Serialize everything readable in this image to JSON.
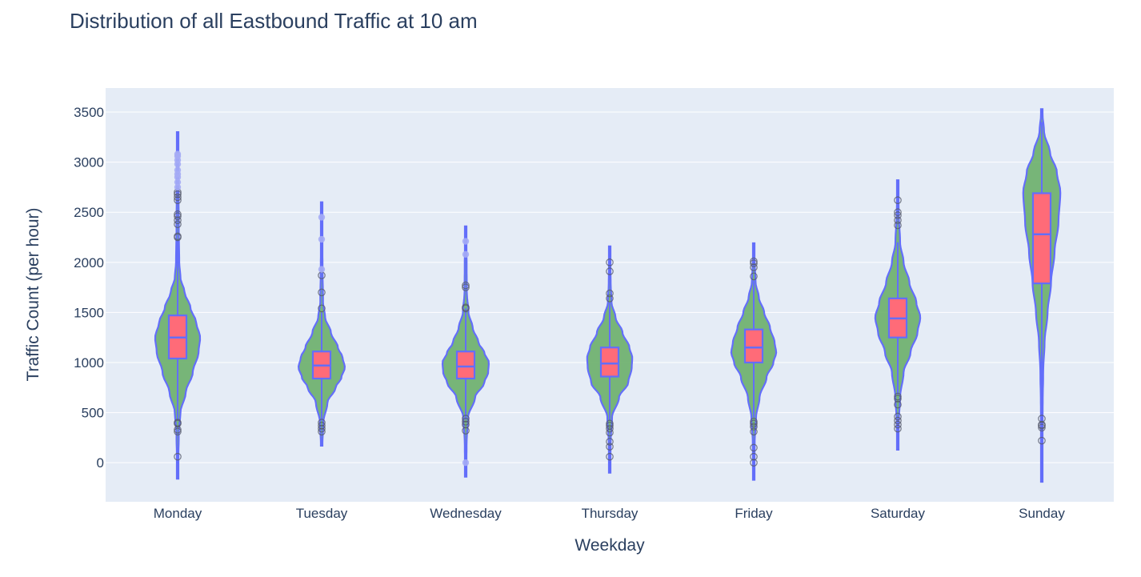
{
  "chart_data": {
    "type": "violin",
    "title": "Distribution of all Eastbound Traffic at 10 am",
    "xlabel": "Weekday",
    "ylabel": "Traffic Count (per hour)",
    "ylim": [
      -390,
      3740
    ],
    "yticks": [
      0,
      500,
      1000,
      1500,
      2000,
      2500,
      3000,
      3500
    ],
    "grid": true,
    "legend": "none",
    "colors": {
      "plot_bg": "#e5ecf6",
      "violin_fill": "#6aaf6a",
      "violin_line": "#636efa",
      "box_fill": "#ff6b78",
      "grid": "#ffffff",
      "text": "#2a3f5f"
    },
    "categories": [
      "Monday",
      "Tuesday",
      "Wednesday",
      "Thursday",
      "Friday",
      "Saturday",
      "Sunday"
    ],
    "series": [
      {
        "category": "Monday",
        "min_extent": -160,
        "max_extent": 3300,
        "q1": 1040,
        "median": 1250,
        "q3": 1470,
        "whisker_low": 420,
        "whisker_high": 2220,
        "density": [
          [
            -160,
            0.02
          ],
          [
            0,
            0.03
          ],
          [
            300,
            0.05
          ],
          [
            500,
            0.12
          ],
          [
            700,
            0.35
          ],
          [
            900,
            0.65
          ],
          [
            1100,
            0.9
          ],
          [
            1250,
            0.97
          ],
          [
            1400,
            0.8
          ],
          [
            1550,
            0.55
          ],
          [
            1700,
            0.3
          ],
          [
            1850,
            0.12
          ],
          [
            2000,
            0.07
          ],
          [
            2300,
            0.05
          ],
          [
            2700,
            0.04
          ],
          [
            3000,
            0.03
          ],
          [
            3300,
            0.01
          ]
        ],
        "outliers": [
          60,
          310,
          330,
          390,
          400,
          2250,
          2260,
          2380,
          2420,
          2460,
          2480,
          2620,
          2650,
          2680,
          2700
        ],
        "suspected": [
          2750,
          2800,
          2850,
          2880,
          2920,
          2980,
          3020,
          3060,
          3080
        ]
      },
      {
        "category": "Tuesday",
        "min_extent": 170,
        "max_extent": 2600,
        "q1": 840,
        "median": 970,
        "q3": 1110,
        "whisker_low": 420,
        "whisker_high": 1500,
        "density": [
          [
            170,
            0.03
          ],
          [
            400,
            0.07
          ],
          [
            600,
            0.25
          ],
          [
            750,
            0.6
          ],
          [
            850,
            0.85
          ],
          [
            950,
            1.0
          ],
          [
            1050,
            0.9
          ],
          [
            1150,
            0.7
          ],
          [
            1300,
            0.4
          ],
          [
            1450,
            0.15
          ],
          [
            1600,
            0.06
          ],
          [
            1900,
            0.04
          ],
          [
            2200,
            0.03
          ],
          [
            2600,
            0.01
          ]
        ],
        "outliers": [
          310,
          340,
          370,
          400,
          1540,
          1700,
          1870
        ],
        "suspected": [
          1930,
          2230,
          2450
        ]
      },
      {
        "category": "Wednesday",
        "min_extent": -140,
        "max_extent": 2360,
        "q1": 840,
        "median": 960,
        "q3": 1110,
        "whisker_low": 430,
        "whisker_high": 1540,
        "density": [
          [
            -140,
            0.02
          ],
          [
            200,
            0.04
          ],
          [
            450,
            0.1
          ],
          [
            650,
            0.4
          ],
          [
            800,
            0.8
          ],
          [
            900,
            0.97
          ],
          [
            1000,
            1.0
          ],
          [
            1100,
            0.8
          ],
          [
            1200,
            0.55
          ],
          [
            1350,
            0.3
          ],
          [
            1500,
            0.12
          ],
          [
            1700,
            0.05
          ],
          [
            2000,
            0.04
          ],
          [
            2360,
            0.01
          ]
        ],
        "outliers": [
          320,
          380,
          410,
          440,
          1540,
          1550,
          1750,
          1770
        ],
        "suspected": [
          0,
          2080,
          2210
        ]
      },
      {
        "category": "Thursday",
        "min_extent": -100,
        "max_extent": 2160,
        "q1": 860,
        "median": 990,
        "q3": 1150,
        "whisker_low": 420,
        "whisker_high": 1600,
        "density": [
          [
            -100,
            0.02
          ],
          [
            200,
            0.04
          ],
          [
            450,
            0.1
          ],
          [
            650,
            0.4
          ],
          [
            800,
            0.8
          ],
          [
            950,
            0.95
          ],
          [
            1050,
            0.97
          ],
          [
            1150,
            0.85
          ],
          [
            1300,
            0.55
          ],
          [
            1450,
            0.25
          ],
          [
            1600,
            0.08
          ],
          [
            1800,
            0.04
          ],
          [
            2160,
            0.01
          ]
        ],
        "outliers": [
          60,
          160,
          210,
          300,
          340,
          370,
          390,
          1640,
          1690,
          1910,
          2000
        ],
        "suspected": []
      },
      {
        "category": "Friday",
        "min_extent": -170,
        "max_extent": 2190,
        "q1": 1000,
        "median": 1150,
        "q3": 1330,
        "whisker_low": 450,
        "whisker_high": 1820,
        "density": [
          [
            -170,
            0.02
          ],
          [
            200,
            0.04
          ],
          [
            450,
            0.1
          ],
          [
            650,
            0.25
          ],
          [
            850,
            0.55
          ],
          [
            1000,
            0.85
          ],
          [
            1100,
            0.97
          ],
          [
            1200,
            0.9
          ],
          [
            1350,
            0.7
          ],
          [
            1500,
            0.45
          ],
          [
            1650,
            0.22
          ],
          [
            1800,
            0.08
          ],
          [
            2000,
            0.04
          ],
          [
            2190,
            0.01
          ]
        ],
        "outliers": [
          0,
          60,
          150,
          310,
          360,
          390,
          410,
          1860,
          1950,
          1990,
          2010
        ],
        "suspected": []
      },
      {
        "category": "Saturday",
        "min_extent": 130,
        "max_extent": 2820,
        "q1": 1250,
        "median": 1440,
        "q3": 1640,
        "whisker_low": 680,
        "whisker_high": 2200,
        "density": [
          [
            130,
            0.02
          ],
          [
            400,
            0.04
          ],
          [
            650,
            0.1
          ],
          [
            900,
            0.25
          ],
          [
            1100,
            0.55
          ],
          [
            1300,
            0.85
          ],
          [
            1450,
            0.97
          ],
          [
            1600,
            0.8
          ],
          [
            1800,
            0.5
          ],
          [
            2000,
            0.25
          ],
          [
            2200,
            0.1
          ],
          [
            2500,
            0.04
          ],
          [
            2820,
            0.01
          ]
        ],
        "outliers": [
          340,
          380,
          420,
          460,
          580,
          640,
          660,
          2370,
          2420,
          2470,
          2500,
          2620
        ],
        "suspected": []
      },
      {
        "category": "Sunday",
        "min_extent": -190,
        "max_extent": 3530,
        "q1": 1790,
        "median": 2280,
        "q3": 2690,
        "whisker_low": 500,
        "whisker_high": 3400,
        "density": [
          [
            -190,
            0.02
          ],
          [
            300,
            0.03
          ],
          [
            600,
            0.04
          ],
          [
            900,
            0.06
          ],
          [
            1200,
            0.12
          ],
          [
            1500,
            0.25
          ],
          [
            1800,
            0.4
          ],
          [
            2100,
            0.55
          ],
          [
            2400,
            0.72
          ],
          [
            2700,
            0.8
          ],
          [
            2900,
            0.65
          ],
          [
            3100,
            0.35
          ],
          [
            3300,
            0.1
          ],
          [
            3530,
            0.01
          ]
        ],
        "outliers": [
          220,
          350,
          370,
          380,
          440
        ],
        "suspected": []
      }
    ]
  }
}
